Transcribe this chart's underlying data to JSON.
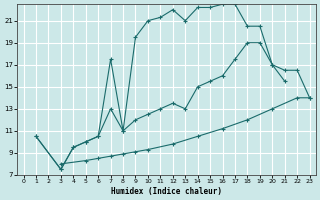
{
  "xlabel": "Humidex (Indice chaleur)",
  "xlim_min": -0.5,
  "xlim_max": 23.5,
  "ylim_min": 7,
  "ylim_max": 22.5,
  "xticks": [
    0,
    1,
    2,
    3,
    4,
    5,
    6,
    7,
    8,
    9,
    10,
    11,
    12,
    13,
    14,
    15,
    16,
    17,
    18,
    19,
    20,
    21,
    22,
    23
  ],
  "yticks": [
    7,
    9,
    11,
    13,
    15,
    17,
    19,
    21
  ],
  "bg_color": "#cce8e8",
  "grid_color": "#ffffff",
  "line_color": "#1a6b6b",
  "curve1_x": [
    1,
    3,
    4,
    5,
    6,
    7,
    8,
    9,
    10,
    11,
    12,
    13,
    14,
    15,
    16,
    17,
    18,
    19,
    20,
    21
  ],
  "curve1_y": [
    10.5,
    7.5,
    9.5,
    10.0,
    10.5,
    17.5,
    11.0,
    19.5,
    21.0,
    21.3,
    22.0,
    21.0,
    22.2,
    22.2,
    22.5,
    22.5,
    20.5,
    20.5,
    17.0,
    15.5
  ],
  "curve2_x": [
    1,
    3,
    4,
    5,
    6,
    7,
    8,
    9,
    10,
    11,
    12,
    13,
    14,
    15,
    16,
    17,
    18,
    19,
    20,
    21,
    22,
    23
  ],
  "curve2_y": [
    10.5,
    7.5,
    9.5,
    10.0,
    10.5,
    13.0,
    11.0,
    12.0,
    12.5,
    13.0,
    13.5,
    13.0,
    15.0,
    15.5,
    16.0,
    17.5,
    19.0,
    19.0,
    17.0,
    16.5,
    16.5,
    14.0
  ],
  "curve3_x": [
    3,
    5,
    6,
    7,
    8,
    9,
    10,
    12,
    14,
    16,
    18,
    20,
    22,
    23
  ],
  "curve3_y": [
    8.0,
    8.3,
    8.5,
    8.7,
    8.9,
    9.1,
    9.3,
    9.8,
    10.5,
    11.2,
    12.0,
    13.0,
    14.0,
    14.0
  ]
}
